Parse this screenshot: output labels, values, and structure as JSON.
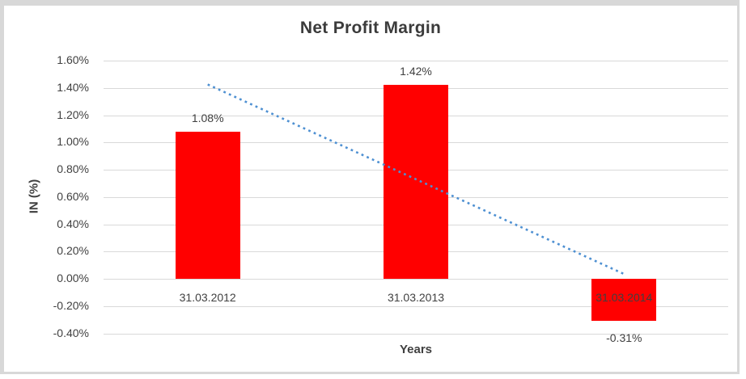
{
  "chart_data": {
    "type": "bar",
    "title": "Net Profit Margin",
    "xlabel": "Years",
    "ylabel": "IN (%)",
    "categories": [
      "31.03.2012",
      "31.03.2013",
      "31.03.2014"
    ],
    "values": [
      1.08,
      1.42,
      -0.31
    ],
    "value_labels": [
      "1.08%",
      "1.42%",
      "-0.31%"
    ],
    "y_ticks": [
      {
        "value": 1.6,
        "label": "1.60%"
      },
      {
        "value": 1.4,
        "label": "1.40%"
      },
      {
        "value": 1.2,
        "label": "1.20%"
      },
      {
        "value": 1.0,
        "label": "1.00%"
      },
      {
        "value": 0.8,
        "label": "0.80%"
      },
      {
        "value": 0.6,
        "label": "0.60%"
      },
      {
        "value": 0.4,
        "label": "0.40%"
      },
      {
        "value": 0.2,
        "label": "0.20%"
      },
      {
        "value": 0.0,
        "label": "0.00%"
      },
      {
        "value": -0.2,
        "label": "-0.20%"
      },
      {
        "value": -0.4,
        "label": "-0.40%"
      }
    ],
    "ylim": [
      -0.4,
      1.6
    ],
    "grid": true,
    "legend": "none",
    "bar_color": "#FF0000",
    "text_color": "#404040",
    "gridline_color": "#D9D9D9",
    "trendline": {
      "type": "linear",
      "style": "dotted",
      "color": "#4E90D2"
    }
  }
}
